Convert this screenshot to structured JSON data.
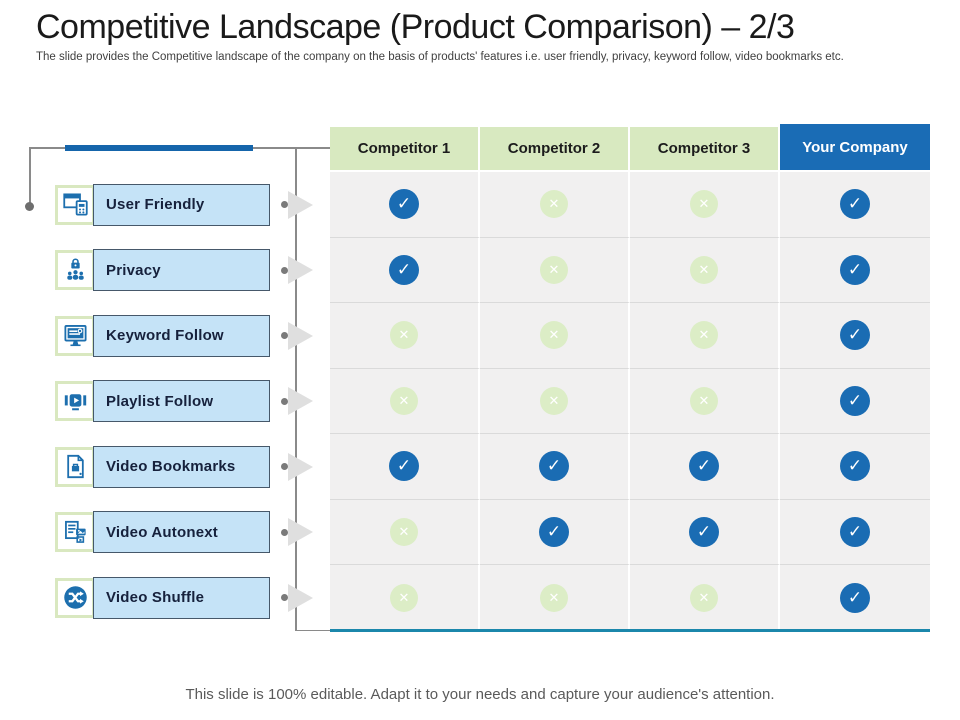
{
  "slide": {
    "title": "Competitive Landscape (Product Comparison) – 2/3",
    "subtitle": "The slide provides the Competitive landscape of the company on the basis of products' features i.e. user friendly, privacy, keyword follow, video bookmarks etc.",
    "footer": "This slide is 100% editable. Adapt it to your needs and capture your audience's attention."
  },
  "comparison": {
    "columns": [
      "Competitor 1",
      "Competitor 2",
      "Competitor 3",
      "Your Company"
    ],
    "features": [
      {
        "label": "User Friendly",
        "icon": "user-friendly-icon",
        "values": [
          "check",
          "cross",
          "cross",
          "check"
        ]
      },
      {
        "label": "Privacy",
        "icon": "privacy-icon",
        "values": [
          "check",
          "cross",
          "cross",
          "check"
        ]
      },
      {
        "label": "Keyword Follow",
        "icon": "keyword-follow-icon",
        "values": [
          "cross",
          "cross",
          "cross",
          "check"
        ]
      },
      {
        "label": "Playlist Follow",
        "icon": "playlist-follow-icon",
        "values": [
          "cross",
          "cross",
          "cross",
          "check"
        ]
      },
      {
        "label": "Video Bookmarks",
        "icon": "video-bookmarks-icon",
        "values": [
          "check",
          "check",
          "check",
          "check"
        ]
      },
      {
        "label": "Video Autonext",
        "icon": "video-autonext-icon",
        "values": [
          "cross",
          "check",
          "check",
          "check"
        ]
      },
      {
        "label": "Video Shuffle",
        "icon": "video-shuffle-icon",
        "values": [
          "cross",
          "cross",
          "cross",
          "check"
        ]
      }
    ]
  },
  "colors": {
    "header_green": "#d8e9c0",
    "header_blue": "#1a6cb5",
    "check_blue": "#1a6cb3",
    "cross_green": "#dcedc6",
    "cell_bg": "#f1f0f0",
    "label_fill": "#c5e3f7",
    "label_border": "#46586a",
    "accent_bar": "#1565ab",
    "bottom_border": "#1b87ab",
    "icon_blue": "#1d6fae"
  }
}
